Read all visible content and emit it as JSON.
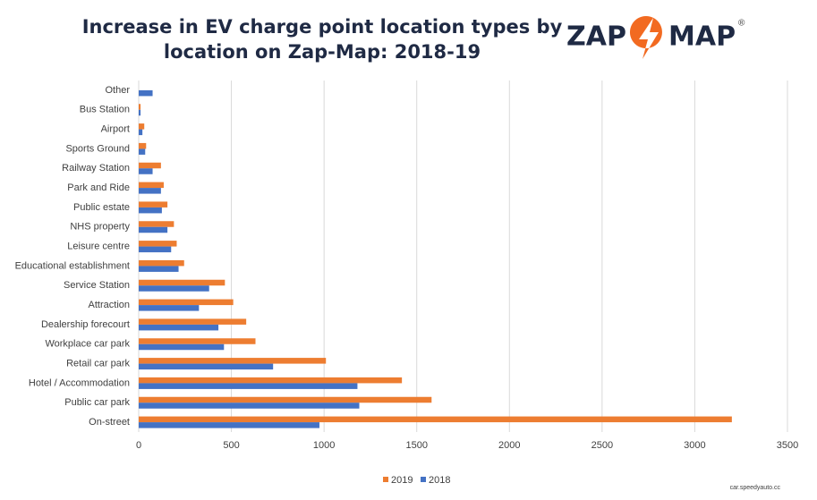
{
  "chart_data": {
    "type": "hbar",
    "title": [
      "Increase in EV charge point location types by",
      "location on Zap-Map: 2018-19"
    ],
    "logo": {
      "left": "ZAP",
      "right": "MAP",
      "mark": "®"
    },
    "source": "car.speedyauto.cc",
    "categories": [
      "Other",
      "Bus Station",
      "Airport",
      "Sports Ground",
      "Railway Station",
      "Park and Ride",
      "Public estate",
      "NHS property",
      "Leisure centre",
      "Educational establishment",
      "Service Station",
      "Attraction",
      "Dealership forecourt",
      "Workplace car park",
      "Retail car park",
      "Hotel / Accommodation",
      "Public car park",
      "On-street"
    ],
    "series": [
      {
        "name": "2019",
        "color": "#ed7d31",
        "values": [
          0,
          10,
          30,
          40,
          120,
          135,
          155,
          190,
          205,
          245,
          465,
          510,
          580,
          630,
          1010,
          1420,
          1580,
          3200
        ]
      },
      {
        "name": "2018",
        "color": "#4472c4",
        "values": [
          75,
          10,
          20,
          35,
          75,
          120,
          125,
          155,
          175,
          215,
          380,
          325,
          430,
          460,
          725,
          1180,
          1190,
          975
        ]
      }
    ],
    "xlim": [
      0,
      3500
    ],
    "xticks": [
      0,
      500,
      1000,
      1500,
      2000,
      2500,
      3000,
      3500
    ],
    "grid": true,
    "legend": "bottom"
  }
}
